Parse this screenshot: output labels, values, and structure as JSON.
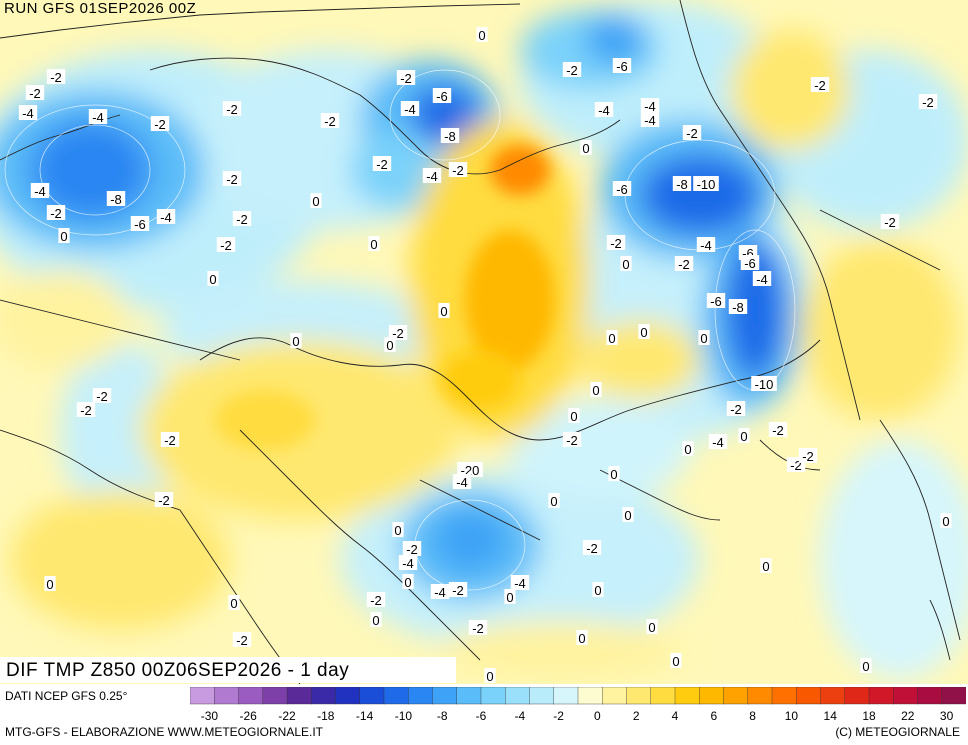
{
  "header": {
    "run": "RUN GFS 01SEP2026 00Z"
  },
  "title": "DIF TMP Z850 00Z06SEP2026 - 1 day",
  "source": "DATI NCEP GFS 0.25°",
  "footer": {
    "left": "MTG-GFS - ELABORAZIONE WWW.METEOGIORNALE.IT",
    "right": "(C) METEOGIORNALE"
  },
  "legend": {
    "colors": [
      "#c89be0",
      "#b07ad0",
      "#9a5cc0",
      "#7d3fa8",
      "#5a2a98",
      "#3a2aa8",
      "#2232c0",
      "#1a4ed8",
      "#1f6ae8",
      "#2a86f2",
      "#3ea2f6",
      "#5abcf8",
      "#7ad2fa",
      "#9ae0fa",
      "#b8ecfb",
      "#d6f6fc",
      "#fdfbd0",
      "#fff3a0",
      "#ffe870",
      "#ffdc40",
      "#ffcc10",
      "#ffb800",
      "#ffa200",
      "#ff8a00",
      "#ff7000",
      "#f85800",
      "#ec4010",
      "#e02818",
      "#d01828",
      "#c01038",
      "#a80c40",
      "#901048"
    ],
    "ticks": [
      "-30",
      "-26",
      "-22",
      "-18",
      "-14",
      "-10",
      "-8",
      "-6",
      "-4",
      "-2",
      "0",
      "2",
      "4",
      "6",
      "8",
      "10",
      "14",
      "18",
      "22",
      "30"
    ]
  },
  "labels": [
    "0",
    "-2",
    "-4",
    "-6",
    "-8",
    "-10",
    "-20"
  ]
}
